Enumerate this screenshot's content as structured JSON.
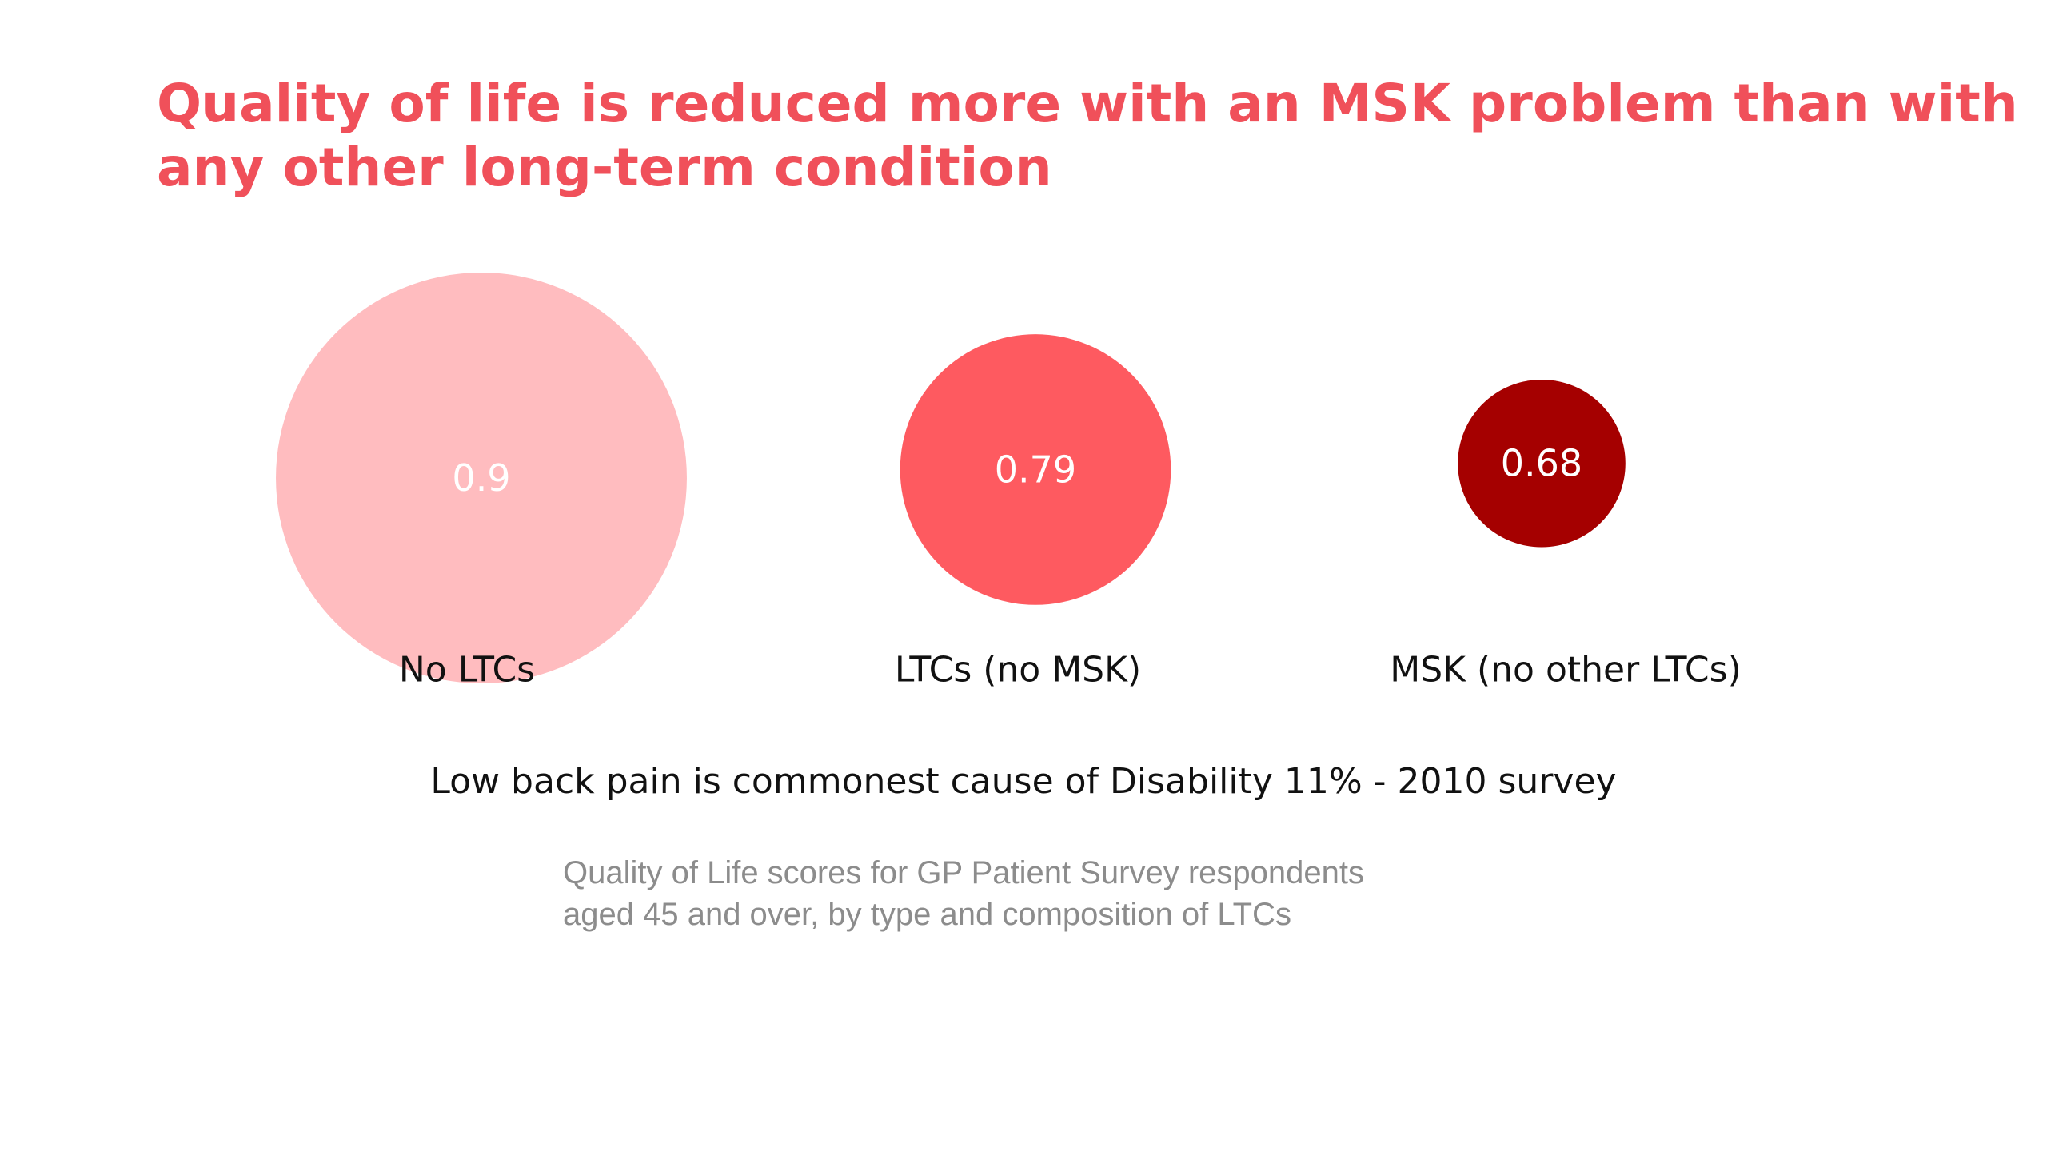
{
  "slide": {
    "title_lines": [
      "Quality of life is reduced more with an MSK problem than with",
      "any other long-term condition"
    ],
    "footnote": "Low back pain is commonest cause of Disability 11% - 2010 survey",
    "caption_lines": [
      "Quality of Life scores for GP Patient Survey respondents",
      "aged 45 and over, by type and composition of LTCs"
    ]
  },
  "chart_data": {
    "type": "bubble",
    "categories": [
      "No LTCs",
      "LTCs (no MSK)",
      "MSK (no other LTCs)"
    ],
    "values": [
      0.9,
      0.79,
      0.68
    ],
    "value_labels": [
      "0.9",
      "0.79",
      "0.68"
    ],
    "colors": [
      "#ffbcbf",
      "#fe5a60",
      "#a50000"
    ]
  }
}
